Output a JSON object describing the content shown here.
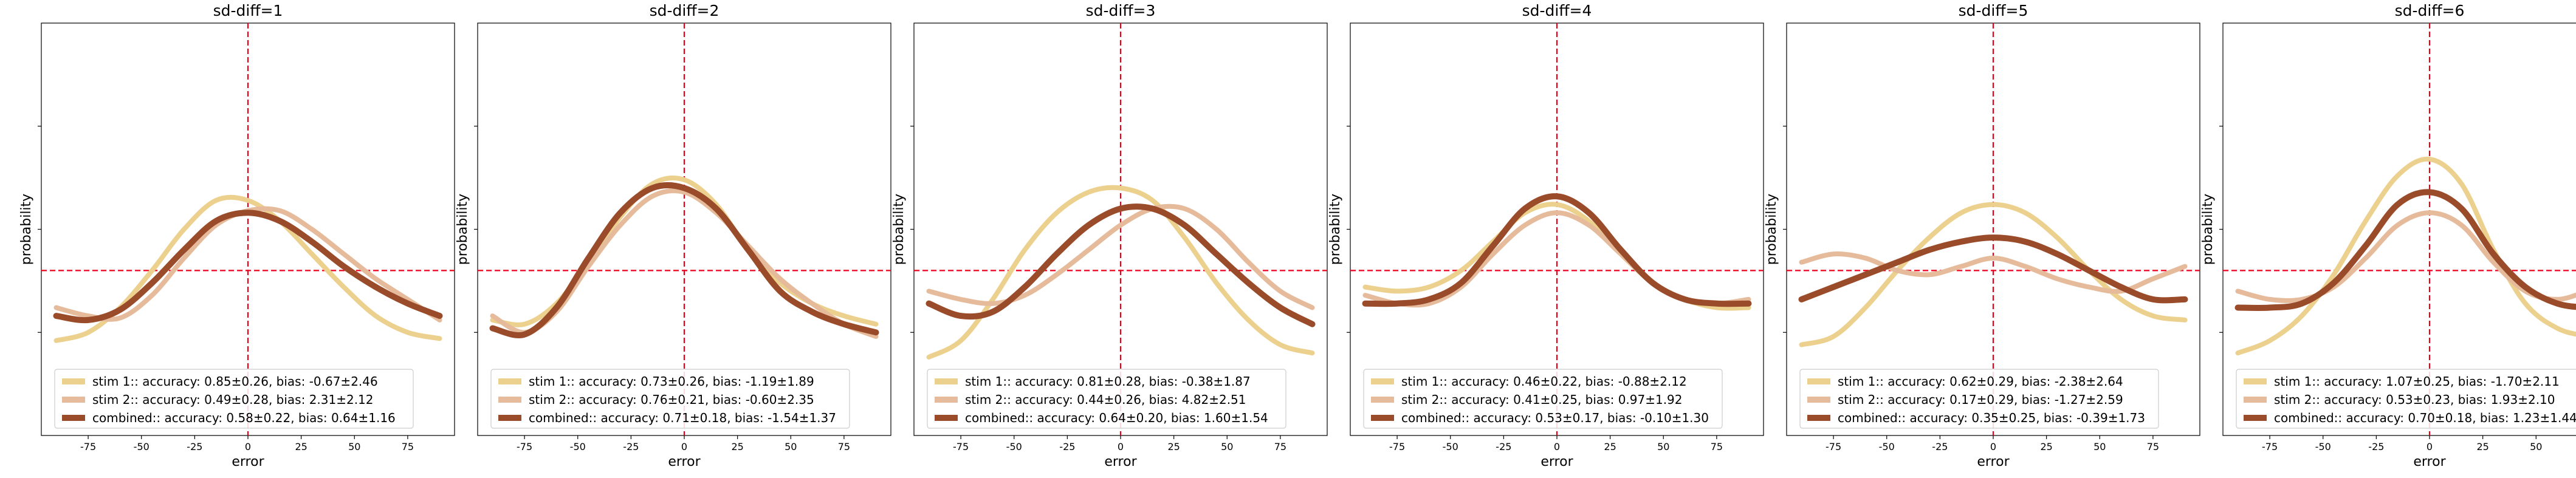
{
  "x_label": "error",
  "y_label": "probability",
  "colors": {
    "stim1": "#ecd08e",
    "stim2": "#e5bb9b",
    "combined": "#9a4b2a",
    "reference": "#e8001b"
  },
  "legend_prefixes": [
    "stim 1::",
    "stim 2::",
    "combined::"
  ],
  "chart_data": [
    {
      "type": "line",
      "title": "sd-diff=1",
      "xlim": [
        -97,
        97
      ],
      "ylim": [
        0,
        1
      ],
      "x_ticks": [
        -75,
        -50,
        -25,
        0,
        25,
        50,
        75
      ],
      "reference": {
        "x": 0,
        "y": 0.4
      },
      "legend_position": "lower-center",
      "series": [
        {
          "name": "stim 1:",
          "accuracy": "0.85±0.26",
          "bias": "-0.67±2.46",
          "x": [
            -90,
            -75,
            -60,
            -45,
            -30,
            -15,
            0,
            15,
            30,
            45,
            60,
            75,
            90
          ],
          "y": [
            0.23,
            0.25,
            0.31,
            0.4,
            0.5,
            0.57,
            0.57,
            0.52,
            0.44,
            0.36,
            0.29,
            0.25,
            0.235
          ]
        },
        {
          "name": "stim 2:",
          "accuracy": "0.49±0.28",
          "bias": "2.31±2.12",
          "x": [
            -90,
            -75,
            -60,
            -45,
            -30,
            -15,
            0,
            15,
            30,
            45,
            60,
            75,
            90
          ],
          "y": [
            0.31,
            0.29,
            0.285,
            0.34,
            0.43,
            0.51,
            0.545,
            0.545,
            0.5,
            0.44,
            0.38,
            0.33,
            0.28
          ]
        },
        {
          "name": "combined:",
          "accuracy": "0.58±0.22",
          "bias": "0.64±1.16",
          "x": [
            -90,
            -75,
            -60,
            -45,
            -30,
            -15,
            0,
            15,
            30,
            45,
            60,
            75,
            90
          ],
          "y": [
            0.29,
            0.28,
            0.305,
            0.37,
            0.45,
            0.52,
            0.54,
            0.52,
            0.47,
            0.41,
            0.36,
            0.32,
            0.29
          ]
        }
      ]
    },
    {
      "type": "line",
      "title": "sd-diff=2",
      "xlim": [
        -97,
        97
      ],
      "ylim": [
        0,
        1
      ],
      "x_ticks": [
        -75,
        -50,
        -25,
        0,
        25,
        50,
        75
      ],
      "reference": {
        "x": 0,
        "y": 0.4
      },
      "legend_position": "lower-center",
      "series": [
        {
          "name": "stim 1:",
          "accuracy": "0.73±0.26",
          "bias": "-1.19±1.89",
          "x": [
            -90,
            -75,
            -60,
            -45,
            -30,
            -15,
            0,
            15,
            30,
            45,
            60,
            75,
            90
          ],
          "y": [
            0.28,
            0.27,
            0.32,
            0.42,
            0.53,
            0.61,
            0.62,
            0.56,
            0.45,
            0.37,
            0.32,
            0.29,
            0.27
          ]
        },
        {
          "name": "stim 2:",
          "accuracy": "0.76±0.21",
          "bias": "-0.60±2.35",
          "x": [
            -90,
            -75,
            -60,
            -45,
            -30,
            -15,
            0,
            15,
            30,
            45,
            60,
            75,
            90
          ],
          "y": [
            0.29,
            0.25,
            0.3,
            0.41,
            0.51,
            0.58,
            0.59,
            0.54,
            0.46,
            0.38,
            0.32,
            0.27,
            0.24
          ]
        },
        {
          "name": "combined:",
          "accuracy": "0.71±0.18",
          "bias": "-1.54±1.37",
          "x": [
            -90,
            -75,
            -60,
            -45,
            -30,
            -15,
            0,
            15,
            30,
            45,
            60,
            75,
            90
          ],
          "y": [
            0.26,
            0.245,
            0.31,
            0.43,
            0.54,
            0.6,
            0.6,
            0.55,
            0.45,
            0.35,
            0.3,
            0.27,
            0.25
          ]
        }
      ]
    },
    {
      "type": "line",
      "title": "sd-diff=3",
      "xlim": [
        -97,
        97
      ],
      "ylim": [
        0,
        1
      ],
      "x_ticks": [
        -75,
        -50,
        -25,
        0,
        25,
        50,
        75
      ],
      "reference": {
        "x": 0,
        "y": 0.4
      },
      "legend_position": "lower-center",
      "series": [
        {
          "name": "stim 1:",
          "accuracy": "0.81±0.28",
          "bias": "-0.38±1.87",
          "x": [
            -90,
            -75,
            -60,
            -45,
            -30,
            -15,
            0,
            15,
            30,
            45,
            60,
            75,
            90
          ],
          "y": [
            0.19,
            0.23,
            0.33,
            0.45,
            0.54,
            0.59,
            0.6,
            0.57,
            0.48,
            0.37,
            0.28,
            0.22,
            0.2
          ]
        },
        {
          "name": "stim 2:",
          "accuracy": "0.44±0.26",
          "bias": "4.82±2.51",
          "x": [
            -90,
            -75,
            -60,
            -45,
            -30,
            -15,
            0,
            15,
            30,
            45,
            60,
            75,
            90
          ],
          "y": [
            0.35,
            0.33,
            0.32,
            0.34,
            0.39,
            0.45,
            0.51,
            0.55,
            0.55,
            0.5,
            0.42,
            0.35,
            0.31
          ]
        },
        {
          "name": "combined:",
          "accuracy": "0.64±0.20",
          "bias": "1.60±1.54",
          "x": [
            -90,
            -75,
            -60,
            -45,
            -30,
            -15,
            0,
            15,
            30,
            45,
            60,
            75,
            90
          ],
          "y": [
            0.32,
            0.29,
            0.3,
            0.36,
            0.44,
            0.51,
            0.55,
            0.55,
            0.51,
            0.44,
            0.37,
            0.31,
            0.27
          ]
        }
      ]
    },
    {
      "type": "line",
      "title": "sd-diff=4",
      "xlim": [
        -97,
        97
      ],
      "ylim": [
        0,
        1
      ],
      "x_ticks": [
        -75,
        -50,
        -25,
        0,
        25,
        50,
        75
      ],
      "reference": {
        "x": 0,
        "y": 0.4
      },
      "legend_position": "lower-center",
      "series": [
        {
          "name": "stim 1:",
          "accuracy": "0.46±0.22",
          "bias": "-0.88±2.12",
          "x": [
            -90,
            -75,
            -60,
            -45,
            -30,
            -15,
            0,
            15,
            30,
            45,
            60,
            75,
            90
          ],
          "y": [
            0.36,
            0.35,
            0.36,
            0.4,
            0.47,
            0.54,
            0.56,
            0.52,
            0.44,
            0.37,
            0.33,
            0.31,
            0.31
          ]
        },
        {
          "name": "stim 2:",
          "accuracy": "0.41±0.25",
          "bias": "0.97±1.92",
          "x": [
            -90,
            -75,
            -60,
            -45,
            -30,
            -15,
            0,
            15,
            30,
            45,
            60,
            75,
            90
          ],
          "y": [
            0.34,
            0.32,
            0.32,
            0.36,
            0.44,
            0.51,
            0.54,
            0.51,
            0.44,
            0.37,
            0.33,
            0.32,
            0.33
          ]
        },
        {
          "name": "combined:",
          "accuracy": "0.53±0.17",
          "bias": "-0.10±1.30",
          "x": [
            -90,
            -75,
            -60,
            -45,
            -30,
            -15,
            0,
            15,
            30,
            45,
            60,
            75,
            90
          ],
          "y": [
            0.32,
            0.32,
            0.33,
            0.37,
            0.46,
            0.55,
            0.58,
            0.54,
            0.45,
            0.37,
            0.33,
            0.32,
            0.32
          ]
        }
      ]
    },
    {
      "type": "line",
      "title": "sd-diff=5",
      "xlim": [
        -97,
        97
      ],
      "ylim": [
        0,
        1
      ],
      "x_ticks": [
        -75,
        -50,
        -25,
        0,
        25,
        50,
        75
      ],
      "reference": {
        "x": 0,
        "y": 0.4
      },
      "legend_position": "lower-center",
      "series": [
        {
          "name": "stim 1:",
          "accuracy": "0.62±0.29",
          "bias": "-2.38±2.64",
          "x": [
            -90,
            -75,
            -60,
            -45,
            -30,
            -15,
            0,
            15,
            30,
            45,
            60,
            75,
            90
          ],
          "y": [
            0.22,
            0.24,
            0.31,
            0.4,
            0.48,
            0.54,
            0.56,
            0.54,
            0.48,
            0.4,
            0.33,
            0.29,
            0.28
          ]
        },
        {
          "name": "stim 2:",
          "accuracy": "0.17±0.29",
          "bias": "-1.27±2.59",
          "x": [
            -90,
            -75,
            -60,
            -45,
            -30,
            -15,
            0,
            15,
            30,
            45,
            60,
            75,
            90
          ],
          "y": [
            0.42,
            0.44,
            0.43,
            0.4,
            0.39,
            0.41,
            0.43,
            0.41,
            0.38,
            0.36,
            0.35,
            0.38,
            0.41
          ]
        },
        {
          "name": "combined:",
          "accuracy": "0.35±0.25",
          "bias": "-0.39±1.73",
          "x": [
            -90,
            -75,
            -60,
            -45,
            -30,
            -15,
            0,
            15,
            30,
            45,
            60,
            75,
            90
          ],
          "y": [
            0.33,
            0.36,
            0.39,
            0.42,
            0.45,
            0.47,
            0.48,
            0.47,
            0.44,
            0.4,
            0.36,
            0.33,
            0.33
          ]
        }
      ]
    },
    {
      "type": "line",
      "title": "sd-diff=6",
      "xlim": [
        -97,
        97
      ],
      "ylim": [
        0,
        1
      ],
      "x_ticks": [
        -75,
        -50,
        -25,
        0,
        25,
        50,
        75
      ],
      "reference": {
        "x": 0,
        "y": 0.4
      },
      "legend_position": "lower-center",
      "series": [
        {
          "name": "stim 1:",
          "accuracy": "1.07±0.25",
          "bias": "-1.70±2.11",
          "x": [
            -90,
            -75,
            -60,
            -45,
            -30,
            -15,
            0,
            15,
            30,
            45,
            60,
            75,
            90
          ],
          "y": [
            0.2,
            0.23,
            0.29,
            0.39,
            0.52,
            0.63,
            0.67,
            0.61,
            0.45,
            0.32,
            0.26,
            0.24,
            0.23
          ]
        },
        {
          "name": "stim 2:",
          "accuracy": "0.53±0.23",
          "bias": "1.93±2.10",
          "x": [
            -90,
            -75,
            -60,
            -45,
            -30,
            -15,
            0,
            15,
            30,
            45,
            60,
            75,
            90
          ],
          "y": [
            0.35,
            0.33,
            0.33,
            0.36,
            0.43,
            0.51,
            0.54,
            0.51,
            0.42,
            0.35,
            0.33,
            0.35,
            0.36
          ]
        },
        {
          "name": "combined:",
          "accuracy": "0.70±0.18",
          "bias": "1.23±1.44",
          "x": [
            -90,
            -75,
            -60,
            -45,
            -30,
            -15,
            0,
            15,
            30,
            45,
            60,
            75,
            90
          ],
          "y": [
            0.31,
            0.31,
            0.32,
            0.37,
            0.46,
            0.56,
            0.59,
            0.55,
            0.44,
            0.36,
            0.32,
            0.31,
            0.31
          ]
        }
      ]
    }
  ]
}
